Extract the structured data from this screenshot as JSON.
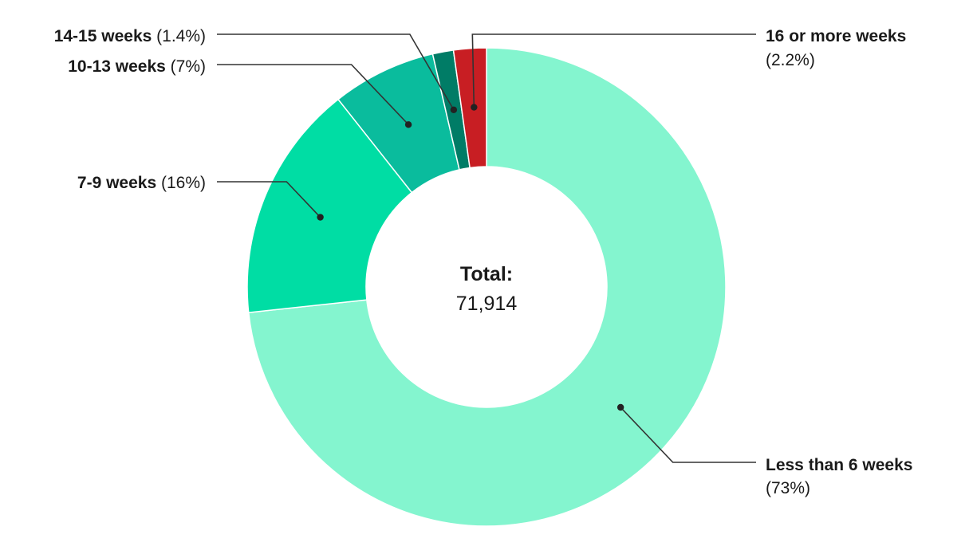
{
  "chart_data": {
    "type": "pie",
    "donut": true,
    "center_title": "Total:",
    "center_value": "71,914",
    "slices": [
      {
        "label": "Less than 6 weeks",
        "pct_text": "(73%)",
        "value": 73,
        "color": "#84f5cf"
      },
      {
        "label": "7-9 weeks",
        "pct_text": "(16%)",
        "value": 16,
        "color": "#00dda4"
      },
      {
        "label": "10-13 weeks",
        "pct_text": "(7%)",
        "value": 7,
        "color": "#0abc9d"
      },
      {
        "label": "14-15 weeks",
        "pct_text": "(1.4%)",
        "value": 1.4,
        "color": "#007c66"
      },
      {
        "label": "16 or more weeks",
        "pct_text": "(2.2%)",
        "value": 2.2,
        "color": "#c81e23"
      }
    ]
  }
}
